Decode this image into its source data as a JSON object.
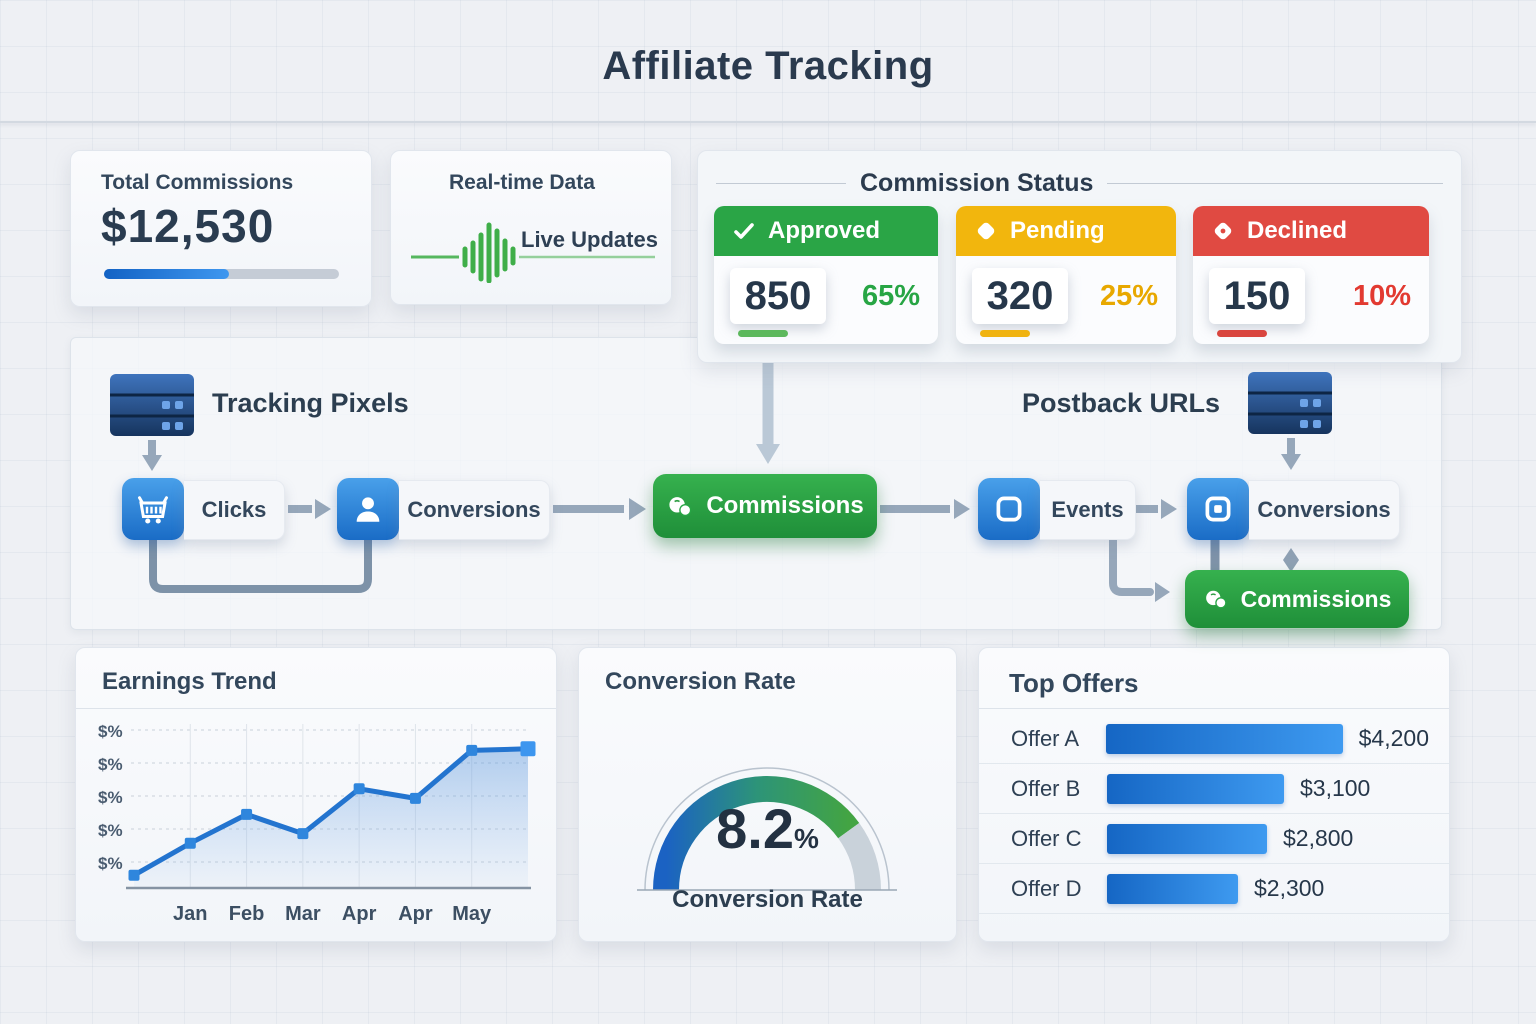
{
  "page": {
    "title": "Affiliate Tracking"
  },
  "cards": {
    "total_commissions": {
      "label": "Total Commissions",
      "value": "$12,530",
      "progress_percent": 53
    },
    "realtime": {
      "label": "Real-time Data",
      "status": "Live Updates",
      "icon": "waveform-icon",
      "wave_color": "#3fae49"
    },
    "commission_status": {
      "title": "Commission Status",
      "items": [
        {
          "label": "Approved",
          "count": "850",
          "percent": "65%",
          "color": "#2aa546",
          "icon": "check-icon"
        },
        {
          "label": "Pending",
          "count": "320",
          "percent": "25%",
          "color": "#f2b60d",
          "icon": "diamond-icon"
        },
        {
          "label": "Declined",
          "count": "150",
          "percent": "10%",
          "color": "#e04a42",
          "icon": "diamond-dot-icon"
        }
      ]
    }
  },
  "flow": {
    "tracking_pixels_title": "Tracking Pixels",
    "postback_urls_title": "Postback URLs",
    "server_icon": "server-icon",
    "nodes": {
      "clicks": {
        "label": "Clicks",
        "icon": "cart-icon"
      },
      "conversions_left": {
        "label": "Conversions",
        "icon": "user-icon"
      },
      "commissions_left": {
        "label": "Commissions",
        "icon": "coins-icon"
      },
      "events": {
        "label": "Events",
        "icon": "event-icon"
      },
      "conversions_right": {
        "label": "Conversions",
        "icon": "conversion-icon"
      },
      "commissions_right": {
        "label": "Commissions",
        "icon": "coins-icon"
      }
    }
  },
  "chart_data": [
    {
      "type": "line",
      "title": "Earnings Trend",
      "x_labels": [
        "Jan",
        "Feb",
        "Mar",
        "Apr",
        "Apr",
        "May"
      ],
      "y_axis_labels": [
        "$%",
        "$%",
        "$%",
        "$%",
        "$%"
      ],
      "values_normalized": [
        8,
        28,
        46,
        34,
        62,
        56,
        86,
        87
      ],
      "note": "8 points; x labels align to points 1-6; y axis shows decorative $% ticks only",
      "line_color": "#2374cf",
      "area": true,
      "grid": true,
      "legend": false
    },
    {
      "type": "gauge",
      "title": "Conversion Rate",
      "value": "8.2",
      "unit": "%",
      "label": "Conversion Rate",
      "arc_percent": 80,
      "colors": {
        "start": "#1b62c3",
        "mid": "#2d9478",
        "end": "#43a443",
        "track": "#c9d2da"
      }
    },
    {
      "type": "bar",
      "title": "Top Offers",
      "categories": [
        "Offer A",
        "Offer B",
        "Offer C",
        "Offer D"
      ],
      "values": [
        4200,
        3100,
        2800,
        2300
      ],
      "value_labels": [
        "$4,200",
        "$3,100",
        "$2,800",
        "$2,300"
      ],
      "bar_color": "#2b84dd",
      "max_value": 4200
    }
  ]
}
